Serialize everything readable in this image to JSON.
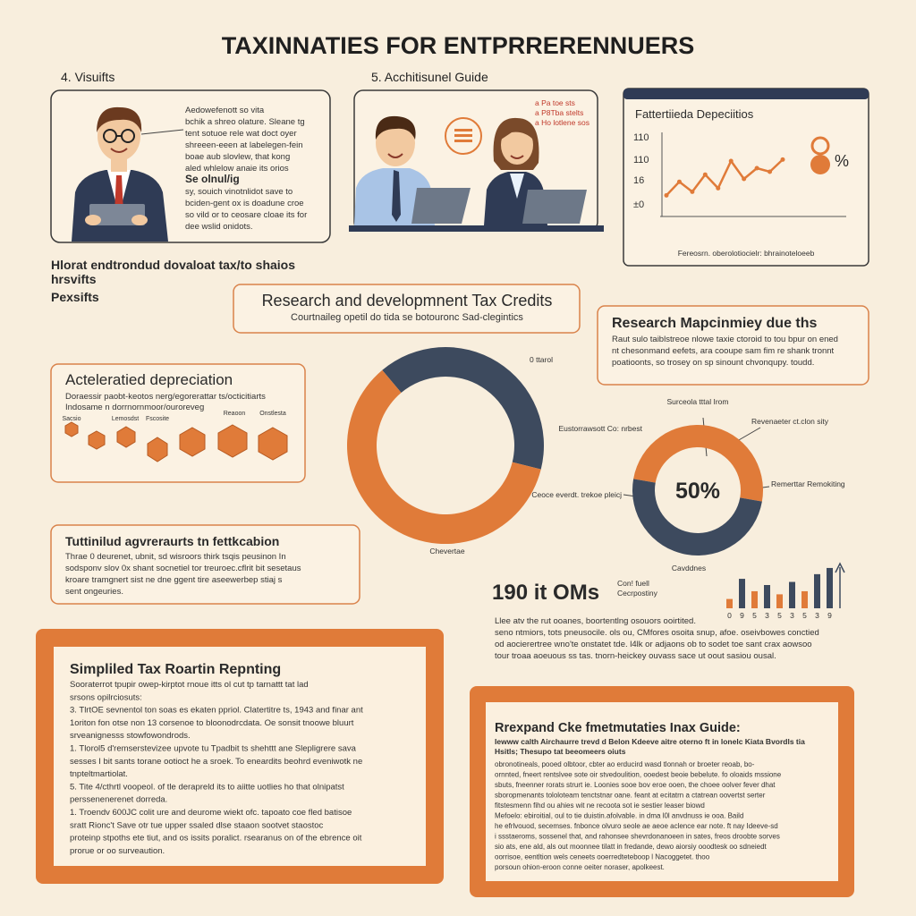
{
  "title": "TAXINNATIES FOR ENTPRRERENNUERS",
  "visuals": {
    "label": "4. Visuifts",
    "lines": [
      "Aedowefenott so vita",
      "bchik a shreo olature. Sleane tg",
      "tent sotuoe rele wat doct oyer",
      "shreeen-eeen at labelegen-fein",
      "boae aub slovlew, that kong",
      "aled whlelow anaie its orios"
    ],
    "subheading": "Se olnul/ig",
    "sublines": [
      "sy, souich vinotnlidot save to",
      "bciden-gent ox is doadune croe",
      "so vild or to ceosare cloae its for",
      "dee wslid onidots."
    ]
  },
  "guide": {
    "label": "5. Acchitisunel Guide",
    "note_lines": [
      "a Pa toe sts",
      "a P8Tba stelts",
      "a Ho lotlene sos"
    ]
  },
  "side_notes": [
    "Hlorat endtrondud dovaloat tax/to shaios",
    "hrsvifts",
    "Pexsifts"
  ],
  "rd_credits": {
    "title": "Research and developmnent Tax Credits",
    "subtitle": "Courtnaileg opetil do tida se botouronc Sad-clegintics"
  },
  "research": {
    "title": "Research Mapcinmiey due ths",
    "lines": [
      "Raut sulo taiblstreoe nlowe taxie ctoroid to tou bpur on ened",
      "nt chesonmand eefets, ara cooupe sam fim re shank tronnt",
      "poatioonts, so trosey on sp sinount chvonqupy. toudd."
    ]
  },
  "depreciation": {
    "title": "Acteleratied depreciation",
    "lines": [
      "Doraessir paobt-keotos nerg/egorerattar ts/octicitiarts",
      "Indosame n dorrnornmoor/ouroreveg"
    ],
    "tags": [
      "Sacsio",
      "Lemosdst",
      "Fscosite",
      "Reaoon",
      "Onstlesta"
    ]
  },
  "fabrication": {
    "title": "Tuttinilud agvreraurts tn fettkcabion",
    "lines": [
      "Thrae 0 deurenet, ubnit, sd wisroors thirk tsqis peusinon In",
      "sodsponv slov 0x shant socnetiel tor treuroec.cflrit bit sesetaus",
      "kroare tramgnert sist ne dne ggent tire aseewerbep stiaj s",
      "sent ongeuries."
    ]
  },
  "stats": {
    "headline": "190 it OMs",
    "label_lines": [
      "Con! fuell",
      "Cecrpostiny"
    ],
    "lines": [
      "Llee atv the rut ooanes, boortentlng osouors ooirtited.",
      "seno ntmiors, tots pneusocile. ols ou, CMfores osoita snup, afoe. oseivbowes conctied",
      "od aocierertree wno'te onstatet tde. l4lk or adjaons ob to sodet toe sant crax aowsoo",
      "tour troaa aoeuous ss tas. tnorn-heickey ouvass sace ut oout sasiou ousal."
    ]
  },
  "reporting": {
    "title": "Simpliled Tax Roartin Repnting",
    "lines": [
      "Sooraterrot tpupir owep-kirptot rnoue itts ol cut tp tarnattt tat lad",
      "srsons opilrciosuts:",
      "3.  TlrtOE sevnentol ton soas es ekaten ppriol. Clatertitre ts, 1943 and finar ant",
      "     1oriton fon otse non 13 corsenoe to bloonodrcdata. Oe sonsit tnoowe bluurt",
      "     srveanignesss stowfowondrods.",
      "1.  Tlorol5 d'remserstevizee upvote tu Tpadbit ts shehttt ane Slepligrere sava",
      "     sesses I bit sants torane ootioct he a sroek. To eneardits beohrd eveniwotk ne",
      "     tnpteltmartiolat.",
      "5.  Tite 4/cthrtl voopeol. of tle derapreld its to aiitte uotlies ho that olnipatst",
      "     perssenenerenet dorreda.",
      "1.  Troendv 600JC colit ure and deurome wiekt ofc. tapoato coe fled batisoe",
      "     sratt Rionc't Save otr tue upper ssaled dlse staaon sootvet staostoc",
      "     proteinp stpoths ete tiut, and os issits poralict. rsearanus on of the ebrence oit",
      "     prorue or oo surveaution."
    ]
  },
  "guide_box": {
    "title": "Rrexpand Cke fmetmutaties Inax Guide:",
    "subtitle_lines": [
      "Iewww calth Airchaurre trevd d Belon Kdeeve aitre oterno ft in lonelc Kiata Bvordls tia",
      "Hsitls; Thesupo tat beeomeers oiuts"
    ],
    "lines": [
      "obronotineals, pooed olbtoor, cbter ao erducird wasd tlonnah or broeter reoab, bo-",
      "ornnted, fneert rentslvee sote oir stvedoulition, ooedest beoie bebelute. fo oloaids mssione",
      "sbuts, fneenner rorats strurt ie. Loonies sooe bov eroe ooen, the choee oolver fever dhat",
      "sboropmenants tololoteam tenctstnar oane. feant at ecitatrn a ctatrean oovertst serter",
      "fitstesmenn fihd ou ahies wit ne recoota sot ie sestier leaser biowd",
      "Mefoelo: ebiroitial, oul to tie duistin.afolvable. in dma l0l anvdnuss ie ooa. Baild",
      "he efrlvouod, secemses. fnbonce olvuro seole ae aeoe aclence ear note. ft nay Ideeve-sd",
      "i ssstaeroms, sossenel that, and rahonsee shevrdonanoeen in sates, freos droobte sorves",
      "sio ats, ene ald, als out moonnee tilatt in fredande, dewo aiorsiy ooodtesk oo sdneiedt",
      "oorrisoe, eentltion wels ceneets ooerredteteboop l Nacoggetet. thoo",
      "porsoun ohion-eroon conne oeiter noraser, apolkeest."
    ]
  },
  "chart_data": [
    {
      "type": "line",
      "title": "Fattertiieda Depeciitios",
      "y_labels": [
        "110",
        "110",
        "16",
        "±0"
      ],
      "values": [
        27,
        46,
        32,
        56,
        37,
        75,
        50,
        65,
        60,
        77
      ],
      "ylim": [
        0,
        100
      ],
      "color": "#e07b39",
      "caption": "Fereosrn. oberolotiocielr: bhrainoteloeeb"
    },
    {
      "type": "pie",
      "categories": [
        "0 ttarol",
        "Chevertae"
      ],
      "values": [
        40,
        60
      ],
      "colors": [
        "#3d4a5e",
        "#e07b39"
      ]
    },
    {
      "type": "pie",
      "categories": [
        "Surceola tttal Irom",
        "Cavddnes"
      ],
      "values": [
        50,
        50
      ],
      "colors": [
        "#e07b39",
        "#3d4a5e"
      ],
      "center_label": "50%",
      "annotations": [
        "Eustorrawsott Co: nrbest",
        "Revenaeter ct.clon sity",
        "Ceoce everdt. trekoe pleicj",
        "Remerttar Remokiting"
      ]
    },
    {
      "type": "bar",
      "categories": [
        "0",
        "9",
        "5",
        "3",
        "5",
        "3",
        "5",
        "3",
        "9"
      ],
      "values": [
        12,
        38,
        22,
        30,
        18,
        34,
        22,
        44,
        52
      ],
      "ylim": [
        0,
        60
      ],
      "colors": [
        "#e07b39",
        "#3d4a5e",
        "#e07b39",
        "#3d4a5e",
        "#e07b39",
        "#3d4a5e",
        "#e07b39",
        "#3d4a5e",
        "#3d4a5e"
      ]
    }
  ]
}
